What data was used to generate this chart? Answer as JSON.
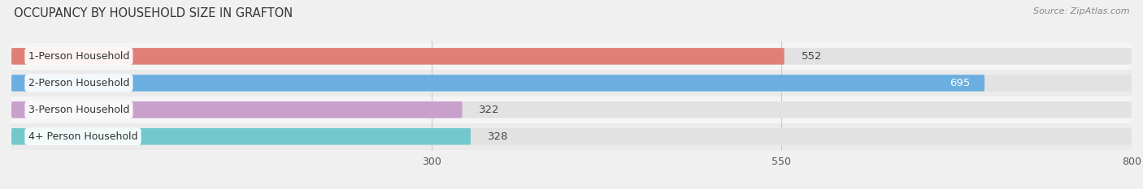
{
  "title": "OCCUPANCY BY HOUSEHOLD SIZE IN GRAFTON",
  "source": "Source: ZipAtlas.com",
  "categories": [
    "1-Person Household",
    "2-Person Household",
    "3-Person Household",
    "4+ Person Household"
  ],
  "values": [
    552,
    695,
    322,
    328
  ],
  "colors": [
    "#e07f78",
    "#6aafe0",
    "#c9a0cc",
    "#72c8cc"
  ],
  "label_colors": [
    "#444444",
    "#ffffff",
    "#444444",
    "#444444"
  ],
  "value_inside": [
    false,
    true,
    false,
    false
  ],
  "xlim": [
    0,
    800
  ],
  "xticks": [
    300,
    550,
    800
  ],
  "bar_height": 0.62,
  "row_bg_alternating": [
    "#f5f5f5",
    "#ebebeb",
    "#f5f5f5",
    "#ebebeb"
  ],
  "bg_bar_color": "#e2e2e2",
  "figure_bg": "#f0f0f0"
}
